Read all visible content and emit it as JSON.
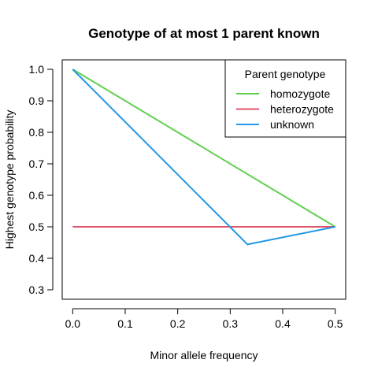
{
  "chart_data": {
    "type": "line",
    "title": "Genotype of at most 1 parent known",
    "xlabel": "Minor allele frequency",
    "ylabel": "Highest genotype probability",
    "xlim": [
      -0.02,
      0.52
    ],
    "ylim": [
      0.27,
      1.03
    ],
    "xticks": [
      "0.0",
      "0.1",
      "0.2",
      "0.3",
      "0.4",
      "0.5"
    ],
    "yticks": [
      "0.3",
      "0.4",
      "0.5",
      "0.6",
      "0.7",
      "0.8",
      "0.9",
      "1.0"
    ],
    "legend": {
      "title": "Parent genotype",
      "position": "top-right"
    },
    "series": [
      {
        "name": "homozygote",
        "color": "#61D04F",
        "x": [
          0.0,
          0.5
        ],
        "y": [
          1.0,
          0.5
        ]
      },
      {
        "name": "heterozygote",
        "color": "#DF536B",
        "x": [
          0.0,
          0.5
        ],
        "y": [
          0.5,
          0.5
        ]
      },
      {
        "name": "unknown",
        "color": "#2297E6",
        "x": [
          0.0,
          0.333,
          0.5
        ],
        "y": [
          1.0,
          0.444,
          0.5
        ]
      }
    ]
  }
}
